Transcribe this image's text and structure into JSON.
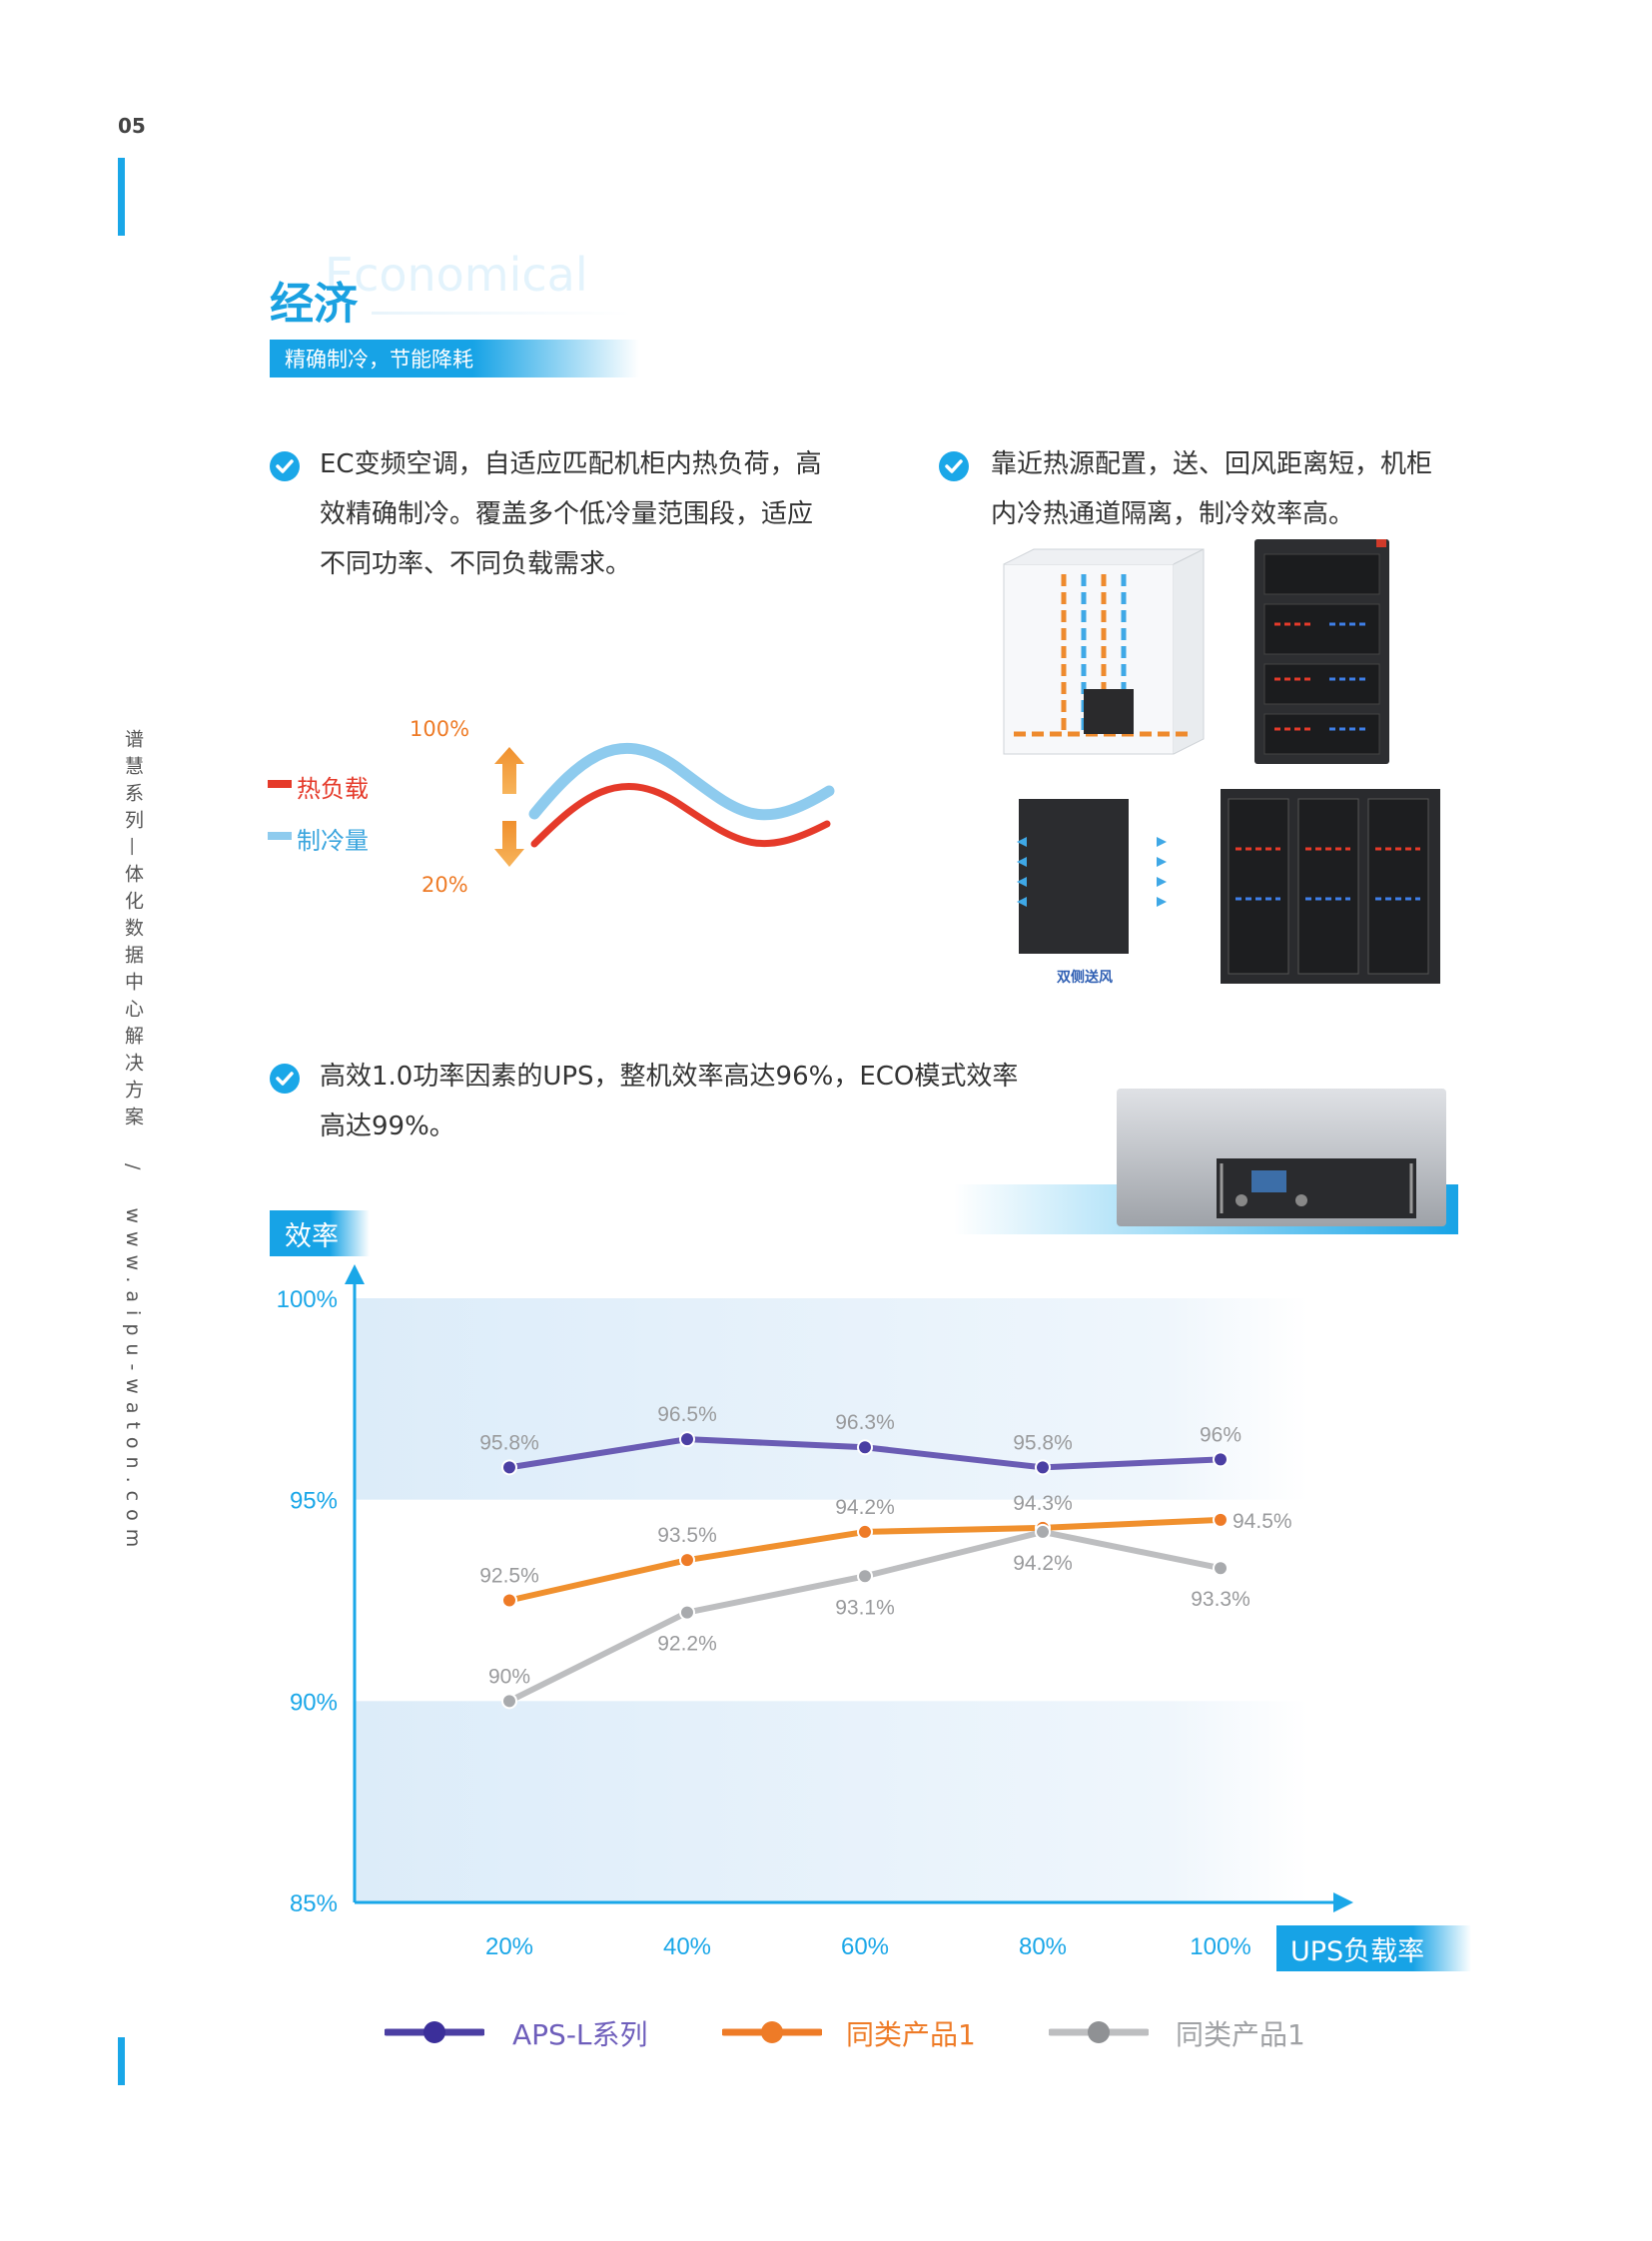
{
  "page": {
    "number": "05",
    "accent": "#1aa7e8"
  },
  "sidebar": {
    "series_title": "谱慧系列",
    "dash": "—",
    "subtitle": "体化数据中心解决方案",
    "slash": "/",
    "url": "www.aipu-waton.com"
  },
  "section": {
    "title": "经济",
    "ghost": "Economical",
    "subtitle": "精确制冷，节能降耗"
  },
  "bullets": [
    {
      "lines": [
        "EC变频空调，自适应匹配机柜内热负荷，高",
        "效精确制冷。覆盖多个低冷量范围段，适应",
        "不同功率、不同负载需求。"
      ]
    },
    {
      "lines": [
        "靠近热源配置，送、回风距离短，机柜",
        "内冷热通道隔离，制冷效率高。"
      ]
    },
    {
      "lines": [
        "高效1.0功率因素的UPS，整机效率高达96%，ECO模式效率",
        "高达99%。"
      ]
    }
  ],
  "cooling_diagram": {
    "top_label": "100%",
    "bottom_label": "20%",
    "legend_heat": "热负载",
    "legend_cool": "制冷量",
    "heat_color": "#e53a2a",
    "cool_color": "#5ab8ea"
  },
  "images": {
    "caption_dual": "双侧送风"
  },
  "chart_tags": {
    "y_tag": "效率",
    "x_tag": "UPS负载率"
  },
  "chart_data": {
    "type": "line",
    "categories": [
      "20%",
      "40%",
      "60%",
      "80%",
      "100%"
    ],
    "y_ticks": [
      "100%",
      "95%",
      "90%",
      "85%"
    ],
    "ylim": [
      85,
      100
    ],
    "ylabel": "效率",
    "xlabel": "UPS负载率",
    "grid": "alternating bands",
    "legend_position": "bottom",
    "series": [
      {
        "name": "APS-L系列",
        "color": "#4b3fa3",
        "line_color": "#6a5cb4",
        "values": [
          95.8,
          96.5,
          96.3,
          95.8,
          96
        ],
        "labels": [
          "95.8%",
          "96.5%",
          "96.3%",
          "95.8%",
          "96%"
        ]
      },
      {
        "name": "同类产品1",
        "color": "#ee7b27",
        "line_color": "#f0902e",
        "values": [
          92.5,
          93.5,
          94.2,
          94.3,
          94.5
        ],
        "labels": [
          "92.5%",
          "93.5%",
          "94.2%",
          "94.3%",
          "94.5%"
        ]
      },
      {
        "name": "同类产品1",
        "color": "#a8aaad",
        "line_color": "#bdbec0",
        "values": [
          90,
          92.2,
          93.1,
          94.2,
          93.3
        ],
        "labels": [
          "90%",
          "92.2%",
          "93.1%",
          "94.2%",
          "93.3%"
        ]
      }
    ]
  }
}
